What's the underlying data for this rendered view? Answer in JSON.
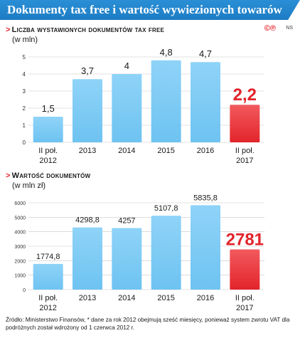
{
  "header": {
    "title": "Dokumenty tax free i wartość wywiezionych towarów"
  },
  "logo": {
    "mark": "©℗",
    "ns": "NS"
  },
  "colors": {
    "header": "#1d7cc3",
    "bar_blue": "#6ec3f1",
    "bar_red": "#e2242b",
    "accent_red": "#e2242b"
  },
  "chart_data": [
    {
      "type": "bar",
      "title": "Liczba wystawionych dokumentów tax free",
      "unit": "(w mln)",
      "categories": [
        [
          "II poł.",
          "2012"
        ],
        [
          "2013"
        ],
        [
          "2014"
        ],
        [
          "2015"
        ],
        [
          "2016"
        ],
        [
          "II poł.",
          "2017"
        ]
      ],
      "values": [
        1.5,
        3.7,
        4,
        4.8,
        4.7,
        2.2
      ],
      "value_labels": [
        "1,5",
        "3,7",
        "4",
        "4,8",
        "4,7",
        "2,2"
      ],
      "highlight_index": 5,
      "ylim": [
        0,
        5
      ],
      "yticks": [
        0,
        1,
        2,
        3,
        4,
        5
      ],
      "ytick_labels": [
        "0",
        "1",
        "2",
        "3",
        "4",
        "5"
      ],
      "grid": true
    },
    {
      "type": "bar",
      "title": "Wartość dokumentów",
      "unit": "(w mln zł)",
      "categories": [
        [
          "II poł.",
          "2012"
        ],
        [
          "2013"
        ],
        [
          "2014"
        ],
        [
          "2015"
        ],
        [
          "2016"
        ],
        [
          "II poł.",
          "2017"
        ]
      ],
      "values": [
        1774.8,
        4298.8,
        4257,
        5107.8,
        5835.8,
        2781
      ],
      "value_labels": [
        "1774,8",
        "4298,8",
        "4257",
        "5107,8",
        "5835,8",
        "2781"
      ],
      "highlight_index": 5,
      "ylim": [
        0,
        6000
      ],
      "yticks": [
        0,
        1000,
        2000,
        3000,
        4000,
        5000,
        6000
      ],
      "ytick_labels": [
        "0",
        "1000",
        "2000",
        "3000",
        "4000",
        "5000",
        "6000"
      ],
      "grid": true
    }
  ],
  "footnote": "Źródło: Ministerstwo Finansów, * dane za rok 2012 obejmują sześć miesięcy, ponieważ system zwrotu VAT dla podróżnych został wdrożony od 1 czerwca 2012 r."
}
